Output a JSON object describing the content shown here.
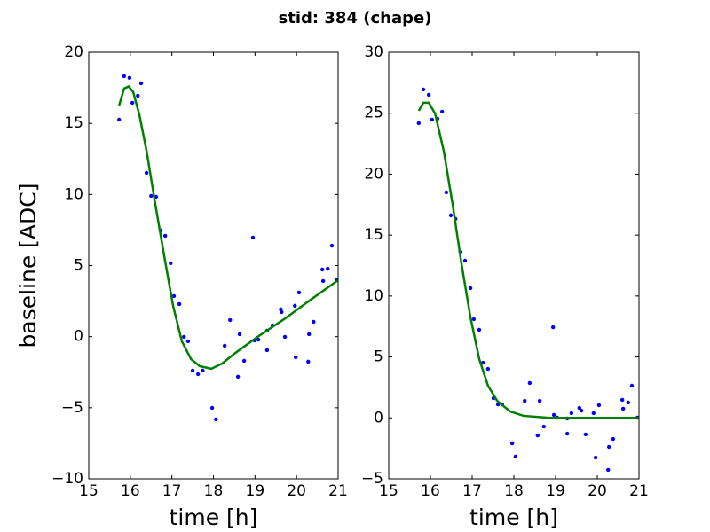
{
  "title": "stid: 384 (chape)",
  "chart_data": [
    {
      "type": "scatter",
      "xlabel": "time [h]",
      "ylabel": "baseline [ADC]",
      "xlim": [
        15,
        21
      ],
      "xticks": [
        15,
        16,
        17,
        18,
        19,
        20,
        21
      ],
      "ylim": [
        -10,
        20
      ],
      "yticks": [
        {
          "value": -10,
          "label": "−10"
        },
        {
          "value": -5,
          "label": "−5"
        },
        0,
        5,
        10,
        15,
        20
      ],
      "series": [
        {
          "type": "scatter",
          "color": "#0000ff",
          "x": [
            15.73,
            15.85,
            15.98,
            16.05,
            16.18,
            16.26,
            16.39,
            16.5,
            16.62,
            16.73,
            16.84,
            16.97,
            17.05,
            17.18,
            17.29,
            17.39,
            17.5,
            17.63,
            17.74,
            17.97,
            18.06,
            18.27,
            18.4,
            18.59,
            18.63,
            18.74,
            18.95,
            18.99,
            19.08,
            19.29,
            19.29,
            19.42,
            19.62,
            19.64,
            19.72,
            19.96,
            19.98,
            20.06,
            20.28,
            20.3,
            20.41,
            20.62,
            20.64,
            20.75,
            20.85,
            20.96
          ],
          "values": [
            15.26,
            18.32,
            18.2,
            16.45,
            16.95,
            17.82,
            11.52,
            9.9,
            9.84,
            7.47,
            7.09,
            5.16,
            2.85,
            2.29,
            -0.02,
            -0.33,
            -2.39,
            -2.64,
            -2.39,
            -5.01,
            -5.82,
            -0.64,
            1.17,
            -2.82,
            0.17,
            -1.7,
            6.97,
            -0.27,
            -0.21,
            -0.95,
            0.42,
            0.79,
            1.92,
            1.73,
            -0.02,
            2.17,
            -1.45,
            3.1,
            -1.76,
            0.17,
            1.04,
            4.72,
            3.91,
            4.78,
            6.4,
            3.98
          ]
        },
        {
          "type": "line",
          "color": "#008000",
          "x": [
            15.73,
            15.85,
            15.96,
            16.07,
            16.22,
            16.39,
            16.6,
            16.82,
            17.03,
            17.24,
            17.46,
            17.67,
            17.95,
            18.21,
            18.53,
            19.06,
            19.7,
            20.34,
            21
          ],
          "values": [
            16.26,
            17.45,
            17.6,
            17.2,
            15.58,
            13.08,
            9.34,
            5.6,
            2.16,
            -0.33,
            -1.58,
            -2.08,
            -2.26,
            -1.89,
            -1.14,
            -0.02,
            1.23,
            2.6,
            3.97
          ]
        }
      ]
    },
    {
      "type": "scatter",
      "xlabel": "time [h]",
      "xlim": [
        15,
        21
      ],
      "xticks": [
        15,
        16,
        17,
        18,
        19,
        20,
        21
      ],
      "ylim": [
        -5,
        30
      ],
      "yticks": [
        {
          "value": -5,
          "label": "−5"
        },
        0,
        5,
        10,
        15,
        20,
        25,
        30
      ],
      "series": [
        {
          "type": "scatter",
          "color": "#0000ff",
          "x": [
            15.72,
            15.83,
            15.96,
            16.04,
            16.17,
            16.28,
            16.38,
            16.49,
            16.6,
            16.72,
            16.83,
            16.96,
            17.04,
            17.17,
            17.26,
            17.38,
            17.51,
            17.62,
            17.72,
            17.96,
            18.04,
            18.26,
            18.38,
            18.57,
            18.62,
            18.72,
            18.94,
            18.96,
            19.04,
            19.28,
            19.28,
            19.38,
            19.57,
            19.62,
            19.72,
            19.91,
            19.96,
            20.04,
            20.26,
            20.28,
            20.38,
            20.6,
            20.62,
            20.74,
            20.83,
            20.96
          ],
          "values": [
            24.18,
            26.95,
            26.51,
            24.47,
            24.55,
            25.13,
            18.51,
            16.62,
            16.33,
            13.63,
            12.9,
            10.65,
            8.1,
            7.23,
            4.53,
            4.02,
            1.62,
            1.11,
            1.11,
            -2.09,
            -3.18,
            1.4,
            2.86,
            -1.44,
            1.4,
            -0.71,
            7.44,
            0.24,
            0.02,
            -1.29,
            -0.05,
            0.39,
            0.82,
            0.6,
            -1.36,
            0.39,
            -3.26,
            1.04,
            -4.27,
            -2.38,
            -1.73,
            1.48,
            0.75,
            1.26,
            2.64,
            0.02
          ]
        },
        {
          "type": "line",
          "color": "#008000",
          "x": [
            15.72,
            15.83,
            15.96,
            16.11,
            16.32,
            16.53,
            16.74,
            16.96,
            17.17,
            17.38,
            17.6,
            17.91,
            18.23,
            18.87,
            21
          ],
          "values": [
            25.2,
            25.86,
            25.86,
            24.98,
            21.9,
            17.56,
            12.75,
            8.24,
            4.83,
            2.64,
            1.4,
            0.53,
            0.17,
            0,
            0
          ]
        }
      ]
    }
  ]
}
